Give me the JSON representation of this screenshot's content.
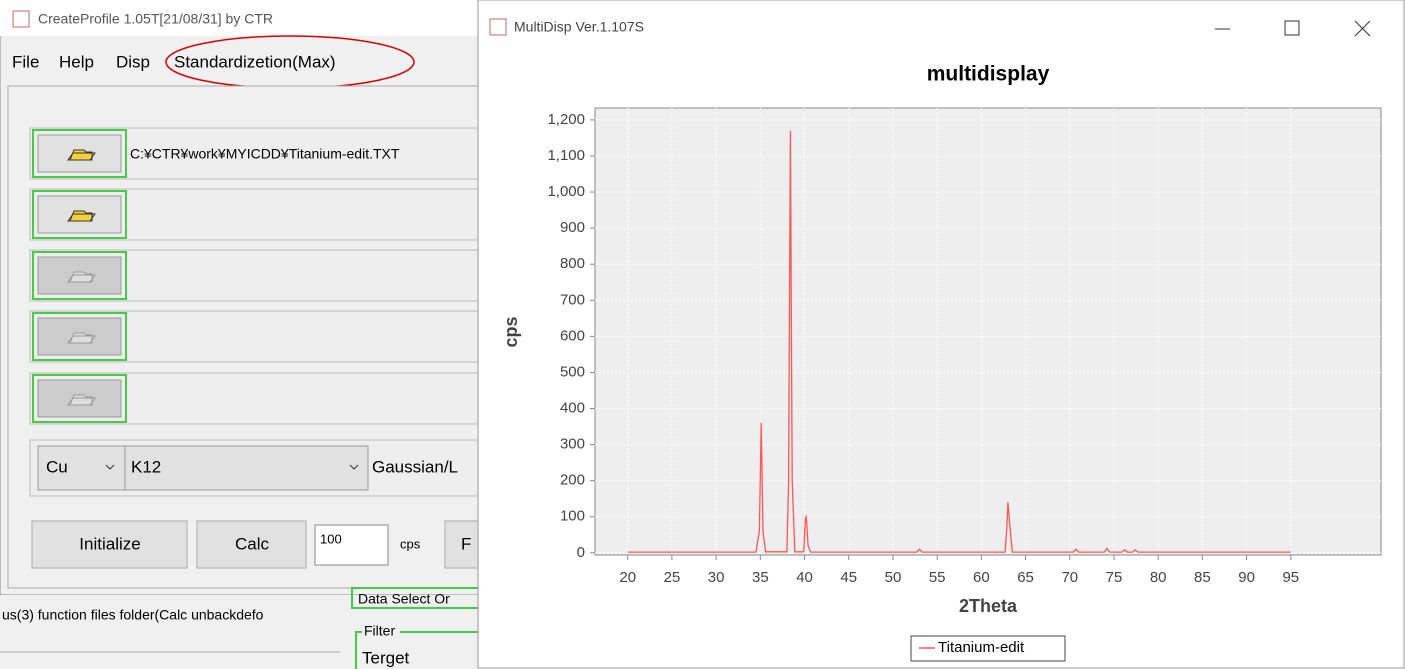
{
  "ui": {
    "left_window": {
      "title": "CreateProfile 1.05T[21/08/31] by CTR",
      "menu": [
        "File",
        "Help",
        "Disp",
        "Standardizetion(Max)"
      ],
      "file_path": "C:¥CTR¥work¥MYICDD¥Titanium-edit.TXT",
      "target": "Cu",
      "line": "K12",
      "profile": "Gaussian/L",
      "buttons": [
        "Initialize",
        "Calc"
      ],
      "threshold": "100",
      "unit": "cps",
      "cut_button": "F",
      "status": "us(3) function files folder(Calc unbackdefo"
    },
    "background": {
      "data_select": "Data Select Or",
      "filter": "Filter",
      "terget": "Terget"
    },
    "right_window": {
      "title": "MultiDisp Ver.1.107S"
    }
  },
  "chart_data": {
    "type": "line",
    "title": "multidisplay",
    "x_label": "2Theta",
    "y_label": "cps",
    "x": [
      20,
      34.5,
      34.9,
      35.1,
      35.3,
      35.6,
      38.0,
      38.2,
      38.4,
      38.6,
      38.9,
      39.9,
      40.1,
      40.2,
      40.4,
      40.7,
      52.7,
      53.0,
      53.3,
      62.7,
      62.9,
      63.0,
      63.2,
      63.5,
      70.4,
      70.7,
      71.0,
      73.9,
      74.2,
      74.5,
      75.9,
      76.2,
      76.5,
      77.1,
      77.4,
      77.7,
      95
    ],
    "series": [
      {
        "name": "Titanium-edit",
        "color": "#ff5555",
        "values": [
          2,
          2,
          60,
          360,
          60,
          3,
          3,
          200,
          1170,
          200,
          3,
          3,
          95,
          100,
          20,
          2,
          2,
          10,
          2,
          2,
          80,
          140,
          80,
          2,
          2,
          10,
          2,
          2,
          12,
          2,
          2,
          8,
          2,
          2,
          8,
          2,
          2
        ]
      }
    ],
    "xlim": [
      16.3,
      105.2
    ],
    "ylim": [
      -6,
      1233
    ],
    "xticks": [
      20,
      25,
      30,
      35,
      40,
      45,
      50,
      55,
      60,
      65,
      70,
      75,
      80,
      85,
      90,
      95
    ],
    "yticks": [
      0,
      100,
      200,
      300,
      400,
      500,
      600,
      700,
      800,
      900,
      {
        "value": 1000,
        "label": "1,000"
      },
      {
        "value": 1100,
        "label": "1,100"
      },
      {
        "value": 1200,
        "label": "1,200"
      }
    ],
    "grid": true,
    "legend": "bottom"
  }
}
